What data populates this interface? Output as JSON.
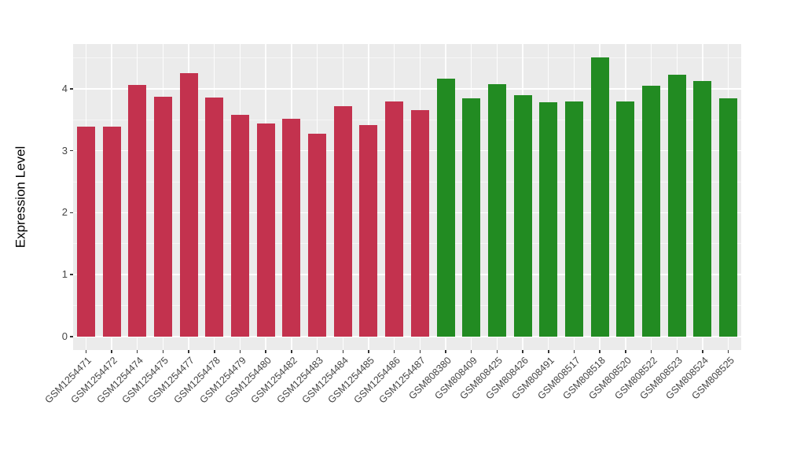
{
  "chart_data": {
    "type": "bar",
    "title": "",
    "ylabel": "Expression Level",
    "categories": [
      "GSM1254471",
      "GSM1254472",
      "GSM1254474",
      "GSM1254475",
      "GSM1254477",
      "GSM1254478",
      "GSM1254479",
      "GSM1254480",
      "GSM1254482",
      "GSM1254483",
      "GSM1254484",
      "GSM1254485",
      "GSM1254486",
      "GSM1254487",
      "GSM808380",
      "GSM808409",
      "GSM808425",
      "GSM808426",
      "GSM808491",
      "GSM808517",
      "GSM808518",
      "GSM808520",
      "GSM808522",
      "GSM808523",
      "GSM808524",
      "GSM808525"
    ],
    "values": [
      3.39,
      3.39,
      4.06,
      3.87,
      4.25,
      3.86,
      3.58,
      3.44,
      3.51,
      3.27,
      3.72,
      3.41,
      3.8,
      3.66,
      4.16,
      3.84,
      4.08,
      3.9,
      3.78,
      3.79,
      4.5,
      3.79,
      4.05,
      4.23,
      4.12,
      3.84
    ],
    "groups": [
      {
        "name": "red-group",
        "color": "#C3324E",
        "start": 0,
        "end": 13
      },
      {
        "name": "green-group",
        "color": "#228B22",
        "start": 14,
        "end": 25
      }
    ],
    "yticks": [
      0,
      1,
      2,
      3,
      4
    ],
    "minor_yticks": [
      0.5,
      1.5,
      2.5,
      3.5,
      4.5
    ],
    "ylim": [
      -0.22,
      4.72
    ],
    "panel_background": "#EBEBEB",
    "grid_color": "#FFFFFF",
    "tick_color": "#333333",
    "axis_text_color": "#454545",
    "legend": "none",
    "grid": "on"
  }
}
